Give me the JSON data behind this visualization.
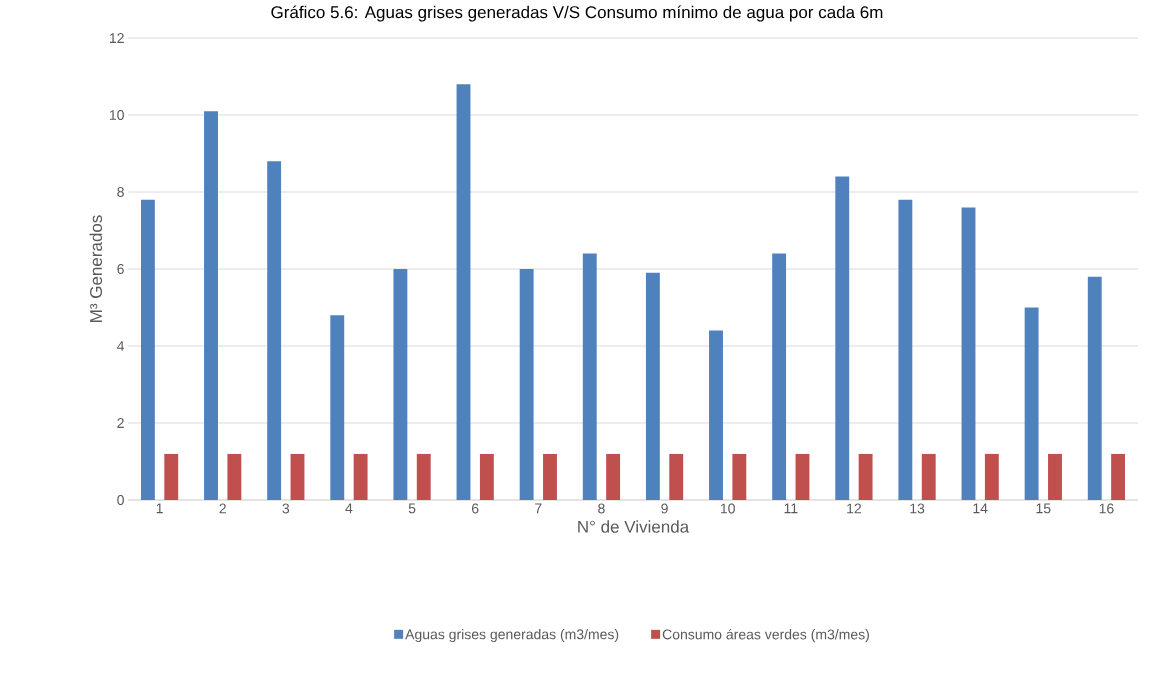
{
  "chart_data": {
    "type": "bar",
    "title": "Gráfico 5.6: Aguas grises generadas V/S Consumo mínimo de agua por cada 6m",
    "xlabel": "N° de Vivienda",
    "ylabel": "M³ Generados",
    "categories": [
      "1",
      "2",
      "3",
      "4",
      "5",
      "6",
      "7",
      "8",
      "9",
      "10",
      "11",
      "12",
      "13",
      "14",
      "15",
      "16"
    ],
    "series": [
      {
        "name": "Aguas grises generadas (m3/mes)",
        "color": "#4f81bd",
        "values": [
          7.8,
          10.1,
          8.8,
          4.8,
          6.0,
          10.8,
          6.0,
          6.4,
          5.9,
          4.4,
          6.4,
          8.4,
          7.8,
          7.6,
          5.0,
          5.8
        ]
      },
      {
        "name": "Consumo áreas verdes (m3/mes)",
        "color": "#c0504d",
        "values": [
          1.2,
          1.2,
          1.2,
          1.2,
          1.2,
          1.2,
          1.2,
          1.2,
          1.2,
          1.2,
          1.2,
          1.2,
          1.2,
          1.2,
          1.2,
          1.2
        ]
      }
    ],
    "ylim": [
      0,
      12
    ],
    "yticks": [
      0,
      2,
      4,
      6,
      8,
      10,
      12
    ],
    "grid": "y",
    "legend": "bottom"
  }
}
